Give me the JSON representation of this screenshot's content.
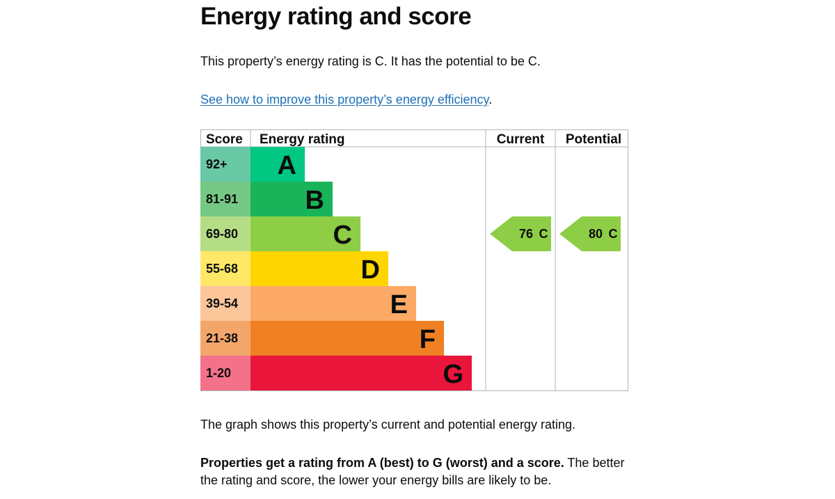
{
  "heading": "Energy rating and score",
  "intro": "This property’s energy rating is C. It has the potential to be C.",
  "improve_link": "See how to improve this property’s energy efficiency",
  "improve_link_suffix": ".",
  "graph_note": "The graph shows this property’s current and potential energy rating.",
  "legend_bold": "Properties get a rating from A (best) to G (worst) and a score.",
  "legend_rest": " The better the rating and score, the lower your energy bills are likely to be.",
  "table": {
    "headers": {
      "score": "Score",
      "rating": "Energy rating",
      "current": "Current",
      "potential": "Potential"
    },
    "bands": [
      {
        "score": "92+",
        "letter": "A",
        "score_color": "#69c8a5",
        "bar_color": "#00c781"
      },
      {
        "score": "81-91",
        "letter": "B",
        "score_color": "#76c984",
        "bar_color": "#19b459"
      },
      {
        "score": "69-80",
        "letter": "C",
        "score_color": "#b5dd85",
        "bar_color": "#8dce46"
      },
      {
        "score": "55-68",
        "letter": "D",
        "score_color": "#ffe867",
        "bar_color": "#ffd500"
      },
      {
        "score": "39-54",
        "letter": "E",
        "score_color": "#fcc59a",
        "bar_color": "#fcaa65"
      },
      {
        "score": "21-38",
        "letter": "F",
        "score_color": "#f4a66a",
        "bar_color": "#ef8023"
      },
      {
        "score": "1-20",
        "letter": "G",
        "score_color": "#f4718a",
        "bar_color": "#e9153b"
      }
    ],
    "current": {
      "value": "76",
      "letter": "C",
      "band": "C",
      "color": "#8dce46"
    },
    "potential": {
      "value": "80",
      "letter": "C",
      "band": "C",
      "color": "#8dce46"
    }
  }
}
